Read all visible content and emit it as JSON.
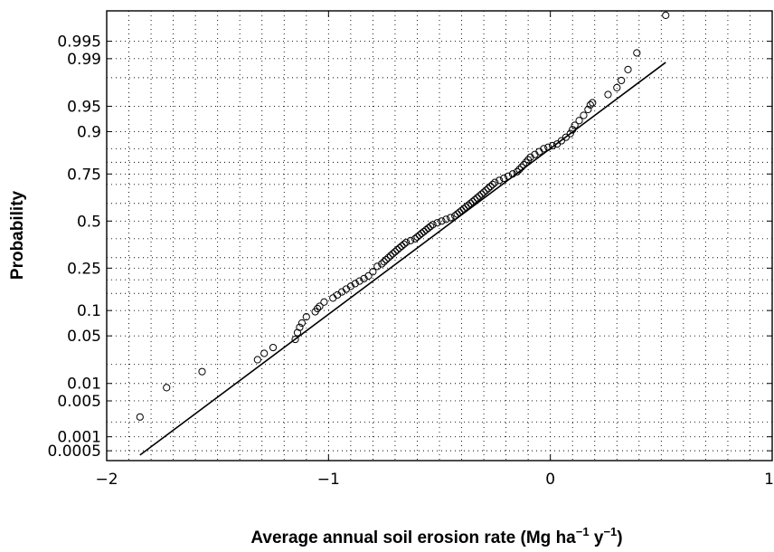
{
  "chart_data": {
    "type": "scatter",
    "title": "",
    "xlabel": {
      "text": "Average annual soil erosion rate (Mg ha",
      "sup1": "−1",
      "mid": " y",
      "sup2": "−1",
      "end": ")"
    },
    "ylabel": "Probability",
    "xlim": [
      -2,
      1
    ],
    "x_scale": "linear",
    "y_scale": "normal-probability",
    "x_ticks": [
      -2,
      -1,
      0,
      1
    ],
    "x_tick_labels": [
      "−2",
      "−1",
      "0",
      "1"
    ],
    "y_ticks": [
      0.0005,
      0.001,
      0.005,
      0.01,
      0.05,
      0.1,
      0.25,
      0.5,
      0.75,
      0.9,
      0.95,
      0.99,
      0.995
    ],
    "y_tick_labels": [
      "0.0005",
      "0.001",
      "0.005",
      "0.01",
      "0.05",
      "0.1",
      "0.25",
      "0.5",
      "0.75",
      "0.9",
      "0.95",
      "0.99",
      "0.995"
    ],
    "grid": true,
    "grid_style": "dotted",
    "series": [
      {
        "kind": "points",
        "marker": "open-circle",
        "x": [
          -1.85,
          -1.73,
          -1.57,
          -1.32,
          -1.29,
          -1.25,
          -1.15,
          -1.14,
          -1.13,
          -1.12,
          -1.1,
          -1.06,
          -1.05,
          -1.04,
          -1.02,
          -0.98,
          -0.96,
          -0.94,
          -0.92,
          -0.9,
          -0.88,
          -0.86,
          -0.84,
          -0.82,
          -0.8,
          -0.78,
          -0.76,
          -0.75,
          -0.74,
          -0.73,
          -0.72,
          -0.71,
          -0.7,
          -0.69,
          -0.68,
          -0.67,
          -0.66,
          -0.65,
          -0.63,
          -0.61,
          -0.6,
          -0.59,
          -0.58,
          -0.57,
          -0.56,
          -0.55,
          -0.54,
          -0.53,
          -0.51,
          -0.49,
          -0.47,
          -0.45,
          -0.43,
          -0.42,
          -0.41,
          -0.4,
          -0.39,
          -0.38,
          -0.37,
          -0.36,
          -0.35,
          -0.34,
          -0.33,
          -0.32,
          -0.31,
          -0.3,
          -0.29,
          -0.28,
          -0.27,
          -0.26,
          -0.25,
          -0.23,
          -0.21,
          -0.19,
          -0.17,
          -0.15,
          -0.14,
          -0.13,
          -0.12,
          -0.11,
          -0.1,
          -0.09,
          -0.07,
          -0.05,
          -0.03,
          -0.01,
          0.01,
          0.03,
          0.05,
          0.07,
          0.09,
          0.1,
          0.11,
          0.13,
          0.15,
          0.17,
          0.18,
          0.19,
          0.26,
          0.3,
          0.32,
          0.35,
          0.39,
          0.52
        ],
        "y": [
          0.0025,
          0.0085,
          0.0155,
          0.0235,
          0.029,
          0.035,
          0.045,
          0.055,
          0.064,
          0.072,
          0.085,
          0.097,
          0.105,
          0.111,
          0.123,
          0.135,
          0.145,
          0.155,
          0.165,
          0.175,
          0.185,
          0.195,
          0.205,
          0.216,
          0.234,
          0.258,
          0.27,
          0.28,
          0.29,
          0.3,
          0.31,
          0.32,
          0.33,
          0.34,
          0.35,
          0.36,
          0.37,
          0.38,
          0.39,
          0.4,
          0.41,
          0.42,
          0.43,
          0.44,
          0.45,
          0.46,
          0.47,
          0.48,
          0.49,
          0.5,
          0.51,
          0.52,
          0.53,
          0.54,
          0.55,
          0.56,
          0.57,
          0.58,
          0.59,
          0.6,
          0.61,
          0.62,
          0.63,
          0.64,
          0.65,
          0.66,
          0.67,
          0.68,
          0.69,
          0.7,
          0.71,
          0.72,
          0.73,
          0.74,
          0.75,
          0.76,
          0.77,
          0.78,
          0.79,
          0.8,
          0.81,
          0.82,
          0.83,
          0.84,
          0.85,
          0.855,
          0.86,
          0.865,
          0.875,
          0.885,
          0.895,
          0.905,
          0.915,
          0.925,
          0.935,
          0.945,
          0.952,
          0.955,
          0.965,
          0.972,
          0.978,
          0.985,
          0.992,
          0.9984
        ]
      },
      {
        "kind": "line",
        "x": [
          -1.85,
          0.52
        ],
        "y": [
          0.0004,
          0.9885
        ]
      }
    ]
  }
}
